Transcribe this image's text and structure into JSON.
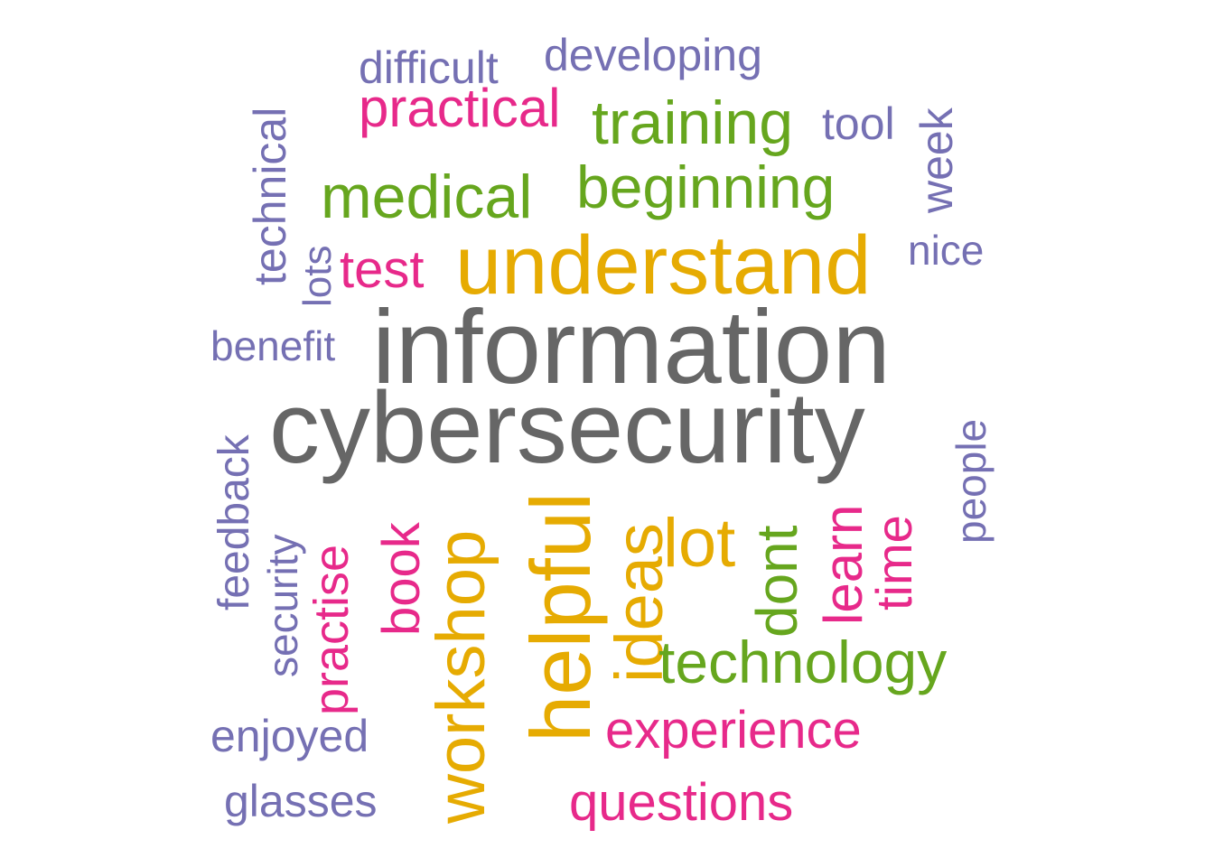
{
  "colors": {
    "gray": "#666666",
    "gold": "#e6ab02",
    "green": "#66a61e",
    "magenta": "#e7298a",
    "purple": "#7570b3"
  },
  "words": [
    {
      "text": "information",
      "color": "gray",
      "orientation": "horizontal"
    },
    {
      "text": "cybersecurity",
      "color": "gray",
      "orientation": "horizontal"
    },
    {
      "text": "understand",
      "color": "gold",
      "orientation": "horizontal"
    },
    {
      "text": "helpful",
      "color": "gold",
      "orientation": "vertical"
    },
    {
      "text": "workshop",
      "color": "gold",
      "orientation": "vertical"
    },
    {
      "text": "ideas",
      "color": "gold",
      "orientation": "vertical"
    },
    {
      "text": "lot",
      "color": "gold",
      "orientation": "horizontal"
    },
    {
      "text": "training",
      "color": "green",
      "orientation": "horizontal"
    },
    {
      "text": "medical",
      "color": "green",
      "orientation": "horizontal"
    },
    {
      "text": "beginning",
      "color": "green",
      "orientation": "horizontal"
    },
    {
      "text": "technology",
      "color": "green",
      "orientation": "horizontal"
    },
    {
      "text": "dont",
      "color": "green",
      "orientation": "vertical"
    },
    {
      "text": "practical",
      "color": "magenta",
      "orientation": "horizontal"
    },
    {
      "text": "test",
      "color": "magenta",
      "orientation": "horizontal"
    },
    {
      "text": "practise",
      "color": "magenta",
      "orientation": "vertical"
    },
    {
      "text": "book",
      "color": "magenta",
      "orientation": "vertical"
    },
    {
      "text": "learn",
      "color": "magenta",
      "orientation": "vertical"
    },
    {
      "text": "time",
      "color": "magenta",
      "orientation": "vertical"
    },
    {
      "text": "experience",
      "color": "magenta",
      "orientation": "horizontal"
    },
    {
      "text": "questions",
      "color": "magenta",
      "orientation": "horizontal"
    },
    {
      "text": "difficult",
      "color": "purple",
      "orientation": "horizontal"
    },
    {
      "text": "developing",
      "color": "purple",
      "orientation": "horizontal"
    },
    {
      "text": "tool",
      "color": "purple",
      "orientation": "horizontal"
    },
    {
      "text": "week",
      "color": "purple",
      "orientation": "vertical"
    },
    {
      "text": "technical",
      "color": "purple",
      "orientation": "vertical"
    },
    {
      "text": "lots",
      "color": "purple",
      "orientation": "vertical"
    },
    {
      "text": "nice",
      "color": "purple",
      "orientation": "horizontal"
    },
    {
      "text": "benefit",
      "color": "purple",
      "orientation": "horizontal"
    },
    {
      "text": "feedback",
      "color": "purple",
      "orientation": "vertical"
    },
    {
      "text": "security",
      "color": "purple",
      "orientation": "vertical"
    },
    {
      "text": "people",
      "color": "purple",
      "orientation": "vertical"
    },
    {
      "text": "enjoyed",
      "color": "purple",
      "orientation": "horizontal"
    },
    {
      "text": "glasses",
      "color": "purple",
      "orientation": "horizontal"
    }
  ]
}
